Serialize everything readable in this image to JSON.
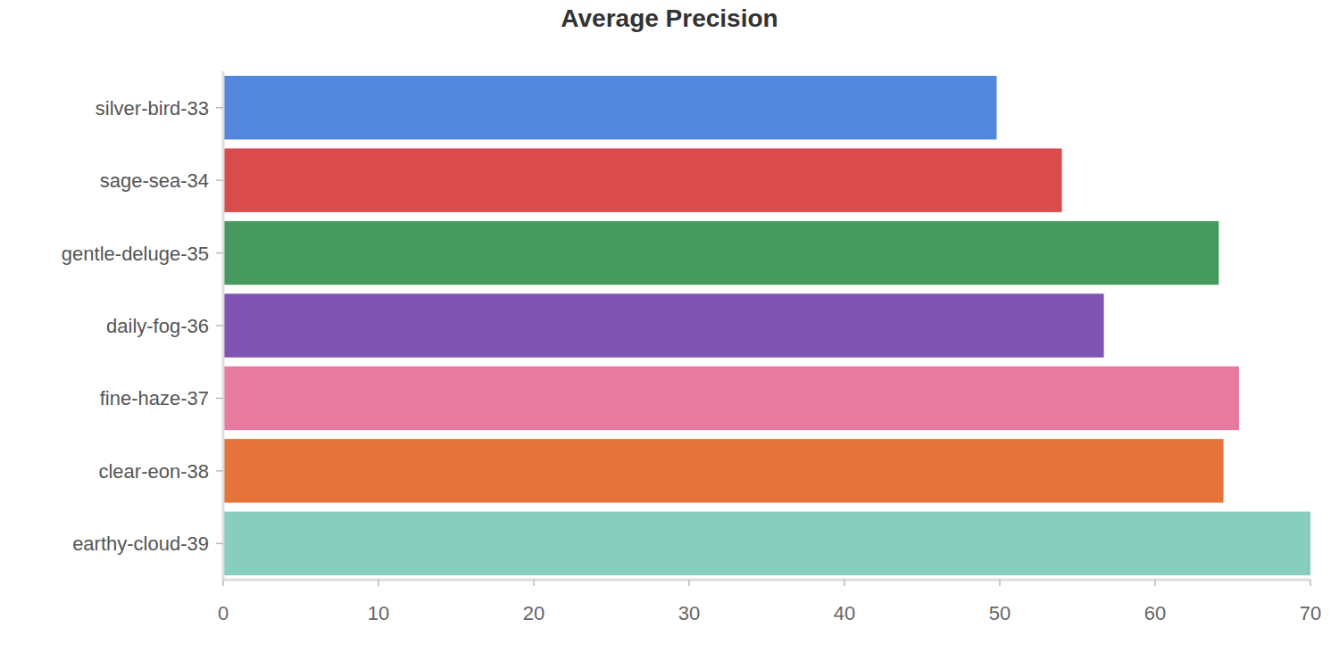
{
  "chart_data": {
    "type": "bar",
    "title": "Average Precision",
    "orientation": "horizontal",
    "categories": [
      "silver-bird-33",
      "sage-sea-34",
      "gentle-deluge-35",
      "daily-fog-36",
      "fine-haze-37",
      "clear-eon-38",
      "earthy-cloud-39"
    ],
    "values": [
      49.8,
      54.0,
      64.1,
      56.7,
      65.4,
      64.4,
      70.0
    ],
    "colors": [
      "#5387dd",
      "#da4c4c",
      "#479a5f",
      "#8054b2",
      "#e8799f",
      "#e5733a",
      "#87cebf"
    ],
    "xlim": [
      0,
      70
    ],
    "xticks": [
      0,
      10,
      20,
      30,
      40,
      50,
      60,
      70
    ],
    "grid": false
  }
}
